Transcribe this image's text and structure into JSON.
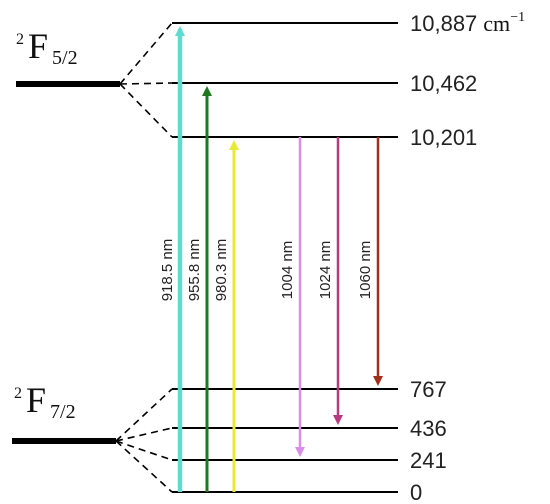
{
  "manifolds": {
    "upper": {
      "term_symbol": "F",
      "superscript": "2",
      "subscript": "5/2"
    },
    "lower": {
      "term_symbol": "F",
      "superscript": "2",
      "subscript": "7/2"
    }
  },
  "energy_levels": [
    {
      "id": "u3",
      "manifold": "upper",
      "energy_label": "10,887",
      "unit_label": "cm",
      "unit_exponent": "−1"
    },
    {
      "id": "u2",
      "manifold": "upper",
      "energy_label": "10,462"
    },
    {
      "id": "u1",
      "manifold": "upper",
      "energy_label": "10,201"
    },
    {
      "id": "l4",
      "manifold": "lower",
      "energy_label": "767"
    },
    {
      "id": "l3",
      "manifold": "lower",
      "energy_label": "436"
    },
    {
      "id": "l2",
      "manifold": "lower",
      "energy_label": "241"
    },
    {
      "id": "l1",
      "manifold": "lower",
      "energy_label": "0"
    }
  ],
  "transitions": [
    {
      "label": "918.5 nm",
      "type": "absorption",
      "from": "l1",
      "to": "u3",
      "color": "#5fdcd0"
    },
    {
      "label": "955.8 nm",
      "type": "absorption",
      "from": "l1",
      "to": "u2",
      "color": "#1e7a1e"
    },
    {
      "label": "980.3 nm",
      "type": "absorption",
      "from": "l1",
      "to": "u1",
      "color": "#e8e836"
    },
    {
      "label": "1004 nm",
      "type": "emission",
      "from": "u1",
      "to": "l2",
      "color": "#d98ee8"
    },
    {
      "label": "1024 nm",
      "type": "emission",
      "from": "u1",
      "to": "l3",
      "color": "#b83a80"
    },
    {
      "label": "1060 nm",
      "type": "emission",
      "from": "u1",
      "to": "l4",
      "color": "#a3301e"
    }
  ]
}
